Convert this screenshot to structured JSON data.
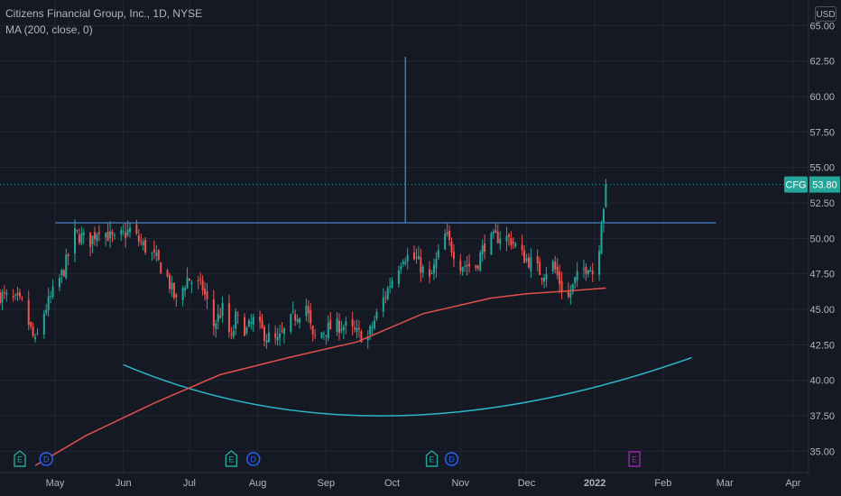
{
  "legend": {
    "title": "Citizens Financial Group, Inc., 1D, NYSE",
    "indicator": "MA (200, close, 0)"
  },
  "currency_button": "USD",
  "colors": {
    "background": "#151924",
    "grid": "#232733",
    "up": "#26a69a",
    "down": "#ef5350",
    "ma": "#e0504a",
    "drawing": "#4a8fd6",
    "arc": "#2bb6c8",
    "earnings": "#26a69a",
    "dividend": "#2962ff",
    "future_earnings": "#9c27b0",
    "axis_text": "#b2b5be"
  },
  "chart_data": {
    "type": "candlestick",
    "symbol": "CFG",
    "last_price": 53.8,
    "last_price_label": "53.80",
    "y_axis": {
      "min": 33.5,
      "max": 66.8,
      "ticks": [
        35.0,
        37.5,
        40.0,
        42.5,
        45.0,
        47.5,
        50.0,
        52.5,
        55.0,
        57.5,
        60.0,
        62.5,
        65.0
      ],
      "tick_labels": [
        "35.00",
        "37.50",
        "40.00",
        "42.50",
        "45.00",
        "47.50",
        "50.00",
        "52.50",
        "55.00",
        "57.50",
        "60.00",
        "62.50",
        "65.00"
      ]
    },
    "x_axis": {
      "start": "2021-04-06",
      "end": "2022-04-08",
      "ticks": [
        {
          "label": "May",
          "date": "2021-05-01"
        },
        {
          "label": "Jun",
          "date": "2021-06-01"
        },
        {
          "label": "Jul",
          "date": "2021-07-01"
        },
        {
          "label": "Aug",
          "date": "2021-08-01"
        },
        {
          "label": "Sep",
          "date": "2021-09-01"
        },
        {
          "label": "Oct",
          "date": "2021-10-01"
        },
        {
          "label": "Nov",
          "date": "2021-11-01"
        },
        {
          "label": "Dec",
          "date": "2021-12-01"
        },
        {
          "label": "2022",
          "date": "2022-01-01",
          "bold": true
        },
        {
          "label": "Feb",
          "date": "2022-02-01"
        },
        {
          "label": "Mar",
          "date": "2022-03-01"
        },
        {
          "label": "Apr",
          "date": "2022-04-01"
        }
      ]
    },
    "price_path": [
      [
        "2021-04-06",
        46.0
      ],
      [
        "2021-04-16",
        45.4
      ],
      [
        "2021-04-22",
        42.6
      ],
      [
        "2021-04-26",
        44.8
      ],
      [
        "2021-05-05",
        47.8
      ],
      [
        "2021-05-10",
        50.3
      ],
      [
        "2021-05-17",
        49.8
      ],
      [
        "2021-05-21",
        50.8
      ],
      [
        "2021-05-28",
        49.8
      ],
      [
        "2021-06-04",
        50.6
      ],
      [
        "2021-06-10",
        49.5
      ],
      [
        "2021-06-16",
        48.5
      ],
      [
        "2021-06-21",
        47.2
      ],
      [
        "2021-06-25",
        45.5
      ],
      [
        "2021-06-30",
        47.2
      ],
      [
        "2021-07-07",
        46.5
      ],
      [
        "2021-07-12",
        43.9
      ],
      [
        "2021-07-16",
        45.0
      ],
      [
        "2021-07-20",
        42.8
      ],
      [
        "2021-07-22",
        44.4
      ],
      [
        "2021-07-27",
        43.5
      ],
      [
        "2021-07-30",
        44.2
      ],
      [
        "2021-08-05",
        43.1
      ],
      [
        "2021-08-10",
        42.7
      ],
      [
        "2021-08-17",
        44.4
      ],
      [
        "2021-08-23",
        45.3
      ],
      [
        "2021-08-26",
        42.9
      ],
      [
        "2021-09-01",
        43.6
      ],
      [
        "2021-09-08",
        43.9
      ],
      [
        "2021-09-15",
        43.3
      ],
      [
        "2021-09-20",
        43.0
      ],
      [
        "2021-09-24",
        44.6
      ],
      [
        "2021-09-30",
        46.8
      ],
      [
        "2021-10-06",
        48.8
      ],
      [
        "2021-10-12",
        48.5
      ],
      [
        "2021-10-18",
        47.0
      ],
      [
        "2021-10-22",
        48.8
      ],
      [
        "2021-10-25",
        50.2
      ],
      [
        "2021-11-01",
        48.2
      ],
      [
        "2021-11-08",
        48.0
      ],
      [
        "2021-11-12",
        49.6
      ],
      [
        "2021-11-19",
        50.2
      ],
      [
        "2021-11-24",
        49.9
      ],
      [
        "2021-11-29",
        48.8
      ],
      [
        "2021-12-03",
        48.3
      ],
      [
        "2021-12-08",
        47.5
      ],
      [
        "2021-12-13",
        48.2
      ],
      [
        "2021-12-17",
        46.5
      ],
      [
        "2021-12-20",
        45.8
      ],
      [
        "2021-12-23",
        47.0
      ],
      [
        "2021-12-29",
        48.2
      ],
      [
        "2021-12-31",
        47.6
      ],
      [
        "2022-01-03",
        49.6
      ],
      [
        "2022-01-04",
        51.4
      ],
      [
        "2022-01-05",
        52.3
      ],
      [
        "2022-01-06",
        53.8
      ]
    ],
    "moving_average_200": {
      "name": "MA (200, close, 0)",
      "points": [
        [
          "2021-04-22",
          34.0
        ],
        [
          "2021-05-15",
          36.1
        ],
        [
          "2021-06-15",
          38.4
        ],
        [
          "2021-07-15",
          40.4
        ],
        [
          "2021-08-15",
          41.6
        ],
        [
          "2021-09-15",
          42.7
        ],
        [
          "2021-10-15",
          44.7
        ],
        [
          "2021-11-15",
          45.8
        ],
        [
          "2021-12-01",
          46.1
        ],
        [
          "2021-12-20",
          46.3
        ],
        [
          "2022-01-06",
          46.5
        ]
      ]
    },
    "drawings": {
      "resistance_line": {
        "from": "2021-05-01",
        "to": "2022-02-25",
        "price": 51.1
      },
      "vertical_line": {
        "date": "2021-10-07",
        "from": 51.1,
        "to": 62.8
      },
      "rounding_arc": {
        "points": [
          [
            "2021-06-01",
            41.1
          ],
          [
            "2021-09-30",
            37.5
          ],
          [
            "2022-02-14",
            41.6
          ]
        ]
      }
    },
    "event_markers": [
      {
        "type": "earnings",
        "label": "E",
        "date": "2021-04-15"
      },
      {
        "type": "dividend",
        "label": "D",
        "date": "2021-04-27"
      },
      {
        "type": "earnings",
        "label": "E",
        "date": "2021-07-20"
      },
      {
        "type": "dividend",
        "label": "D",
        "date": "2021-07-30"
      },
      {
        "type": "earnings",
        "label": "E",
        "date": "2021-10-19"
      },
      {
        "type": "dividend",
        "label": "D",
        "date": "2021-10-28"
      },
      {
        "type": "future_earnings",
        "label": "E",
        "date": "2022-01-19"
      }
    ]
  }
}
